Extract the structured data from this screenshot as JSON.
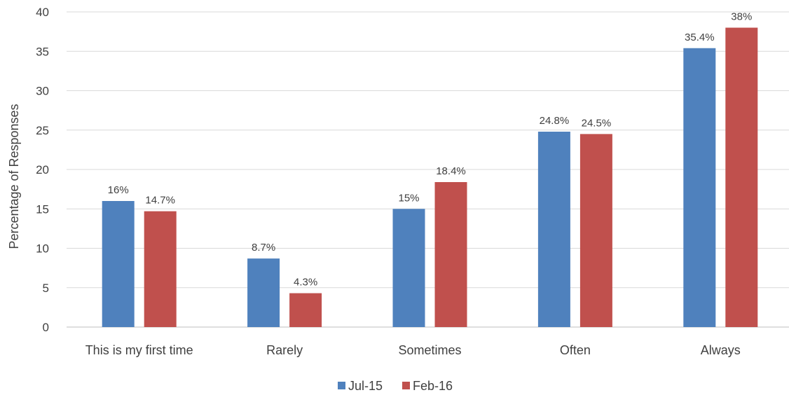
{
  "chart_data": {
    "type": "bar",
    "title": "",
    "xlabel": "",
    "ylabel": "Percentage of Responses",
    "ylim": [
      0,
      40
    ],
    "yticks": [
      0,
      5,
      10,
      15,
      20,
      25,
      30,
      35,
      40
    ],
    "grid": true,
    "legend_position": "bottom",
    "categories": [
      "This is my first time",
      "Rarely",
      "Sometimes",
      "Often",
      "Always"
    ],
    "series": [
      {
        "name": "Jul-15",
        "color": "#4f81bd",
        "values": [
          16,
          8.7,
          15,
          24.8,
          35.4
        ],
        "labels": [
          "16%",
          "8.7%",
          "15%",
          "24.8%",
          "35.4%"
        ]
      },
      {
        "name": "Feb-16",
        "color": "#c0504d",
        "values": [
          14.7,
          4.3,
          18.4,
          24.5,
          38
        ],
        "labels": [
          "14.7%",
          "4.3%",
          "18.4%",
          "24.5%",
          "38%"
        ]
      }
    ]
  }
}
